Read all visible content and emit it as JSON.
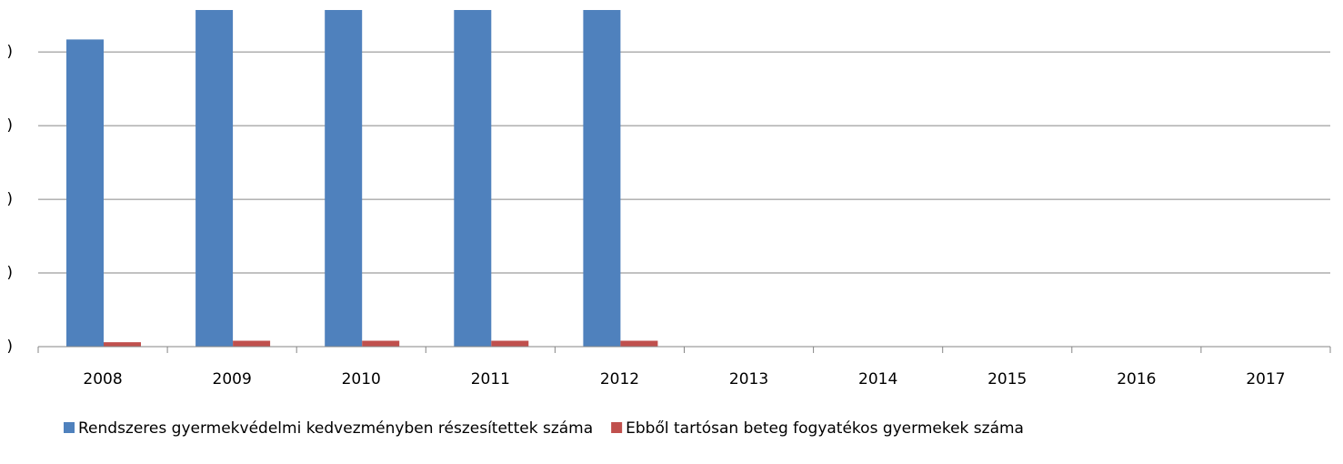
{
  "chart_data": {
    "type": "bar",
    "categories": [
      "2008",
      "2009",
      "2010",
      "2011",
      "2012",
      "2013",
      "2014",
      "2015",
      "2016",
      "2017"
    ],
    "series": [
      {
        "name": "Rendszeres gyermekvédelmi kedvezményben részesítettek száma",
        "color": "#4f81bd",
        "values": [
          417,
          460,
          460,
          460,
          460,
          null,
          null,
          null,
          null,
          null
        ]
      },
      {
        "name": "Ebből tartósan beteg fogyatékos gyermekek száma",
        "color": "#c0504d",
        "values": [
          6,
          8,
          8,
          8,
          8,
          null,
          null,
          null,
          null,
          null
        ]
      }
    ],
    "ylim": [
      0,
      457
    ],
    "yticks": [
      {
        "value": 0,
        "label": ")"
      },
      {
        "value": 100,
        "label": ")"
      },
      {
        "value": 200,
        "label": ")"
      },
      {
        "value": 300,
        "label": ")"
      },
      {
        "value": 400,
        "label": ")"
      }
    ],
    "grid": true,
    "legend": "bottom"
  }
}
